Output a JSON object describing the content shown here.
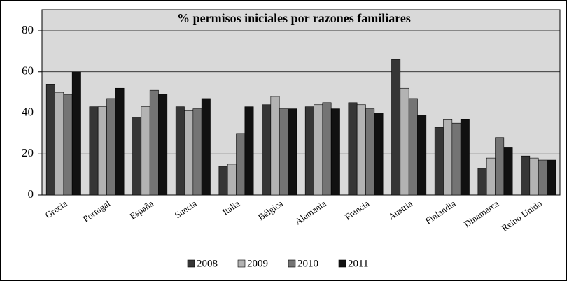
{
  "chart_data": {
    "type": "bar",
    "title": "% permisos iniciales por razones familiares",
    "categories": [
      "Grecia",
      "Portugal",
      "España",
      "Suecia",
      "Italia",
      "Bélgica",
      "Alemania",
      "Francia",
      "Austria",
      "Finlandia",
      "Dinamarca",
      "Reino Unido"
    ],
    "series": [
      {
        "name": "2008",
        "color": "#363636",
        "values": [
          54,
          43,
          38,
          43,
          14,
          44,
          43,
          45,
          66,
          33,
          13,
          19
        ]
      },
      {
        "name": "2009",
        "color": "#b3b3b3",
        "values": [
          50,
          43,
          43,
          41,
          15,
          48,
          44,
          44,
          52,
          37,
          18,
          18
        ]
      },
      {
        "name": "2010",
        "color": "#747474",
        "values": [
          49,
          47,
          51,
          42,
          30,
          42,
          45,
          42,
          47,
          35,
          28,
          17
        ]
      },
      {
        "name": "2011",
        "color": "#111111",
        "values": [
          60,
          52,
          49,
          47,
          43,
          42,
          42,
          40,
          39,
          37,
          23,
          17
        ]
      }
    ],
    "ylim": [
      0,
      80
    ],
    "yticks": [
      0,
      20,
      40,
      60,
      80
    ],
    "grid": true
  }
}
